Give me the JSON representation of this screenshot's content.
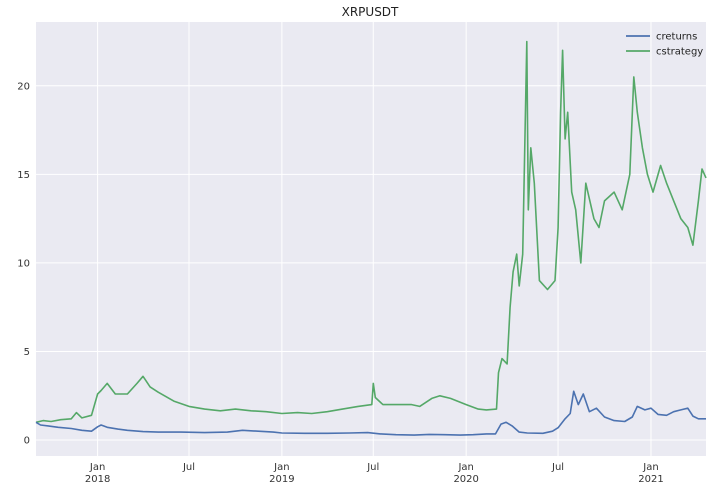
{
  "chart_data": {
    "type": "line",
    "title": "XRPUSDT",
    "xlabel": "",
    "ylabel": "",
    "x_range": [
      "2017-09-01",
      "2021-04-20"
    ],
    "ylim": [
      -0.9,
      23.6
    ],
    "grid": true,
    "legend_position": "top-right",
    "background": "#eaeaf2",
    "y_ticks": [
      0,
      5,
      10,
      15,
      20
    ],
    "x_ticks": [
      {
        "date": "2018-01-01",
        "label": "Jan",
        "year": "2018"
      },
      {
        "date": "2018-07-01",
        "label": "Jul",
        "year": ""
      },
      {
        "date": "2019-01-01",
        "label": "Jan",
        "year": "2019"
      },
      {
        "date": "2019-07-01",
        "label": "Jul",
        "year": ""
      },
      {
        "date": "2020-01-01",
        "label": "Jan",
        "year": "2020"
      },
      {
        "date": "2020-07-01",
        "label": "Jul",
        "year": ""
      },
      {
        "date": "2021-01-01",
        "label": "Jan",
        "year": "2021"
      }
    ],
    "series": [
      {
        "name": "creturns",
        "color": "#4c72b0",
        "points": [
          [
            "2017-09-01",
            1.0
          ],
          [
            "2017-09-10",
            0.85
          ],
          [
            "2017-09-25",
            0.8
          ],
          [
            "2017-10-15",
            0.72
          ],
          [
            "2017-11-10",
            0.65
          ],
          [
            "2017-12-01",
            0.55
          ],
          [
            "2017-12-20",
            0.5
          ],
          [
            "2018-01-01",
            0.75
          ],
          [
            "2018-01-08",
            0.85
          ],
          [
            "2018-01-20",
            0.72
          ],
          [
            "2018-02-10",
            0.62
          ],
          [
            "2018-03-01",
            0.55
          ],
          [
            "2018-04-01",
            0.48
          ],
          [
            "2018-05-01",
            0.45
          ],
          [
            "2018-06-15",
            0.45
          ],
          [
            "2018-08-01",
            0.42
          ],
          [
            "2018-09-15",
            0.45
          ],
          [
            "2018-10-15",
            0.55
          ],
          [
            "2018-11-15",
            0.5
          ],
          [
            "2018-12-15",
            0.45
          ],
          [
            "2019-01-01",
            0.4
          ],
          [
            "2019-02-15",
            0.38
          ],
          [
            "2019-04-01",
            0.38
          ],
          [
            "2019-05-15",
            0.4
          ],
          [
            "2019-06-20",
            0.42
          ],
          [
            "2019-07-15",
            0.35
          ],
          [
            "2019-08-15",
            0.3
          ],
          [
            "2019-09-20",
            0.28
          ],
          [
            "2019-10-20",
            0.32
          ],
          [
            "2019-11-20",
            0.3
          ],
          [
            "2019-12-20",
            0.28
          ],
          [
            "2020-01-15",
            0.3
          ],
          [
            "2020-02-10",
            0.35
          ],
          [
            "2020-02-28",
            0.35
          ],
          [
            "2020-03-10",
            0.9
          ],
          [
            "2020-03-20",
            1.0
          ],
          [
            "2020-04-01",
            0.8
          ],
          [
            "2020-04-15",
            0.45
          ],
          [
            "2020-05-01",
            0.4
          ],
          [
            "2020-06-01",
            0.38
          ],
          [
            "2020-06-20",
            0.5
          ],
          [
            "2020-07-01",
            0.7
          ],
          [
            "2020-07-15",
            1.2
          ],
          [
            "2020-07-25",
            1.5
          ],
          [
            "2020-08-01",
            2.75
          ],
          [
            "2020-08-10",
            2.0
          ],
          [
            "2020-08-20",
            2.6
          ],
          [
            "2020-09-01",
            1.6
          ],
          [
            "2020-09-15",
            1.8
          ],
          [
            "2020-10-01",
            1.3
          ],
          [
            "2020-10-20",
            1.1
          ],
          [
            "2020-11-10",
            1.05
          ],
          [
            "2020-11-25",
            1.3
          ],
          [
            "2020-12-05",
            1.9
          ],
          [
            "2020-12-20",
            1.7
          ],
          [
            "2021-01-01",
            1.8
          ],
          [
            "2021-01-15",
            1.45
          ],
          [
            "2021-02-01",
            1.4
          ],
          [
            "2021-02-15",
            1.6
          ],
          [
            "2021-03-01",
            1.7
          ],
          [
            "2021-03-15",
            1.8
          ],
          [
            "2021-03-25",
            1.35
          ],
          [
            "2021-04-05",
            1.2
          ],
          [
            "2021-04-20",
            1.2
          ]
        ]
      },
      {
        "name": "cstrategy",
        "color": "#55a868",
        "points": [
          [
            "2017-09-01",
            1.0
          ],
          [
            "2017-09-15",
            1.1
          ],
          [
            "2017-10-01",
            1.05
          ],
          [
            "2017-10-20",
            1.15
          ],
          [
            "2017-11-10",
            1.2
          ],
          [
            "2017-11-20",
            1.55
          ],
          [
            "2017-12-01",
            1.25
          ],
          [
            "2017-12-20",
            1.4
          ],
          [
            "2018-01-01",
            2.6
          ],
          [
            "2018-01-08",
            2.8
          ],
          [
            "2018-01-20",
            3.2
          ],
          [
            "2018-02-05",
            2.6
          ],
          [
            "2018-03-01",
            2.6
          ],
          [
            "2018-03-20",
            3.2
          ],
          [
            "2018-04-01",
            3.6
          ],
          [
            "2018-04-15",
            3.0
          ],
          [
            "2018-05-01",
            2.7
          ],
          [
            "2018-06-01",
            2.2
          ],
          [
            "2018-07-01",
            1.9
          ],
          [
            "2018-08-01",
            1.75
          ],
          [
            "2018-09-01",
            1.65
          ],
          [
            "2018-10-01",
            1.75
          ],
          [
            "2018-11-01",
            1.65
          ],
          [
            "2018-12-01",
            1.6
          ],
          [
            "2019-01-01",
            1.5
          ],
          [
            "2019-02-01",
            1.55
          ],
          [
            "2019-03-01",
            1.5
          ],
          [
            "2019-04-01",
            1.6
          ],
          [
            "2019-05-01",
            1.75
          ],
          [
            "2019-06-01",
            1.9
          ],
          [
            "2019-06-28",
            2.0
          ],
          [
            "2019-07-01",
            3.2
          ],
          [
            "2019-07-05",
            2.4
          ],
          [
            "2019-07-20",
            2.0
          ],
          [
            "2019-08-15",
            2.0
          ],
          [
            "2019-09-15",
            2.0
          ],
          [
            "2019-10-01",
            1.9
          ],
          [
            "2019-10-25",
            2.35
          ],
          [
            "2019-11-10",
            2.5
          ],
          [
            "2019-12-01",
            2.35
          ],
          [
            "2020-01-01",
            2.0
          ],
          [
            "2020-01-25",
            1.75
          ],
          [
            "2020-02-10",
            1.7
          ],
          [
            "2020-03-01",
            1.75
          ],
          [
            "2020-03-05",
            3.8
          ],
          [
            "2020-03-12",
            4.6
          ],
          [
            "2020-03-22",
            4.3
          ],
          [
            "2020-03-28",
            7.5
          ],
          [
            "2020-04-03",
            9.5
          ],
          [
            "2020-04-10",
            10.5
          ],
          [
            "2020-04-15",
            8.7
          ],
          [
            "2020-04-22",
            10.5
          ],
          [
            "2020-04-30",
            22.5
          ],
          [
            "2020-05-03",
            13.0
          ],
          [
            "2020-05-08",
            16.5
          ],
          [
            "2020-05-15",
            14.5
          ],
          [
            "2020-05-25",
            9.0
          ],
          [
            "2020-06-10",
            8.5
          ],
          [
            "2020-06-25",
            9.0
          ],
          [
            "2020-07-01",
            12.0
          ],
          [
            "2020-07-06",
            18.5
          ],
          [
            "2020-07-10",
            22.0
          ],
          [
            "2020-07-15",
            17.0
          ],
          [
            "2020-07-20",
            18.5
          ],
          [
            "2020-07-28",
            14.0
          ],
          [
            "2020-08-05",
            13.0
          ],
          [
            "2020-08-15",
            10.0
          ],
          [
            "2020-08-25",
            14.5
          ],
          [
            "2020-09-10",
            12.5
          ],
          [
            "2020-09-20",
            12.0
          ],
          [
            "2020-10-01",
            13.5
          ],
          [
            "2020-10-20",
            14.0
          ],
          [
            "2020-11-05",
            13.0
          ],
          [
            "2020-11-20",
            15.0
          ],
          [
            "2020-11-28",
            20.5
          ],
          [
            "2020-12-05",
            18.5
          ],
          [
            "2020-12-15",
            16.5
          ],
          [
            "2020-12-25",
            15.0
          ],
          [
            "2021-01-05",
            14.0
          ],
          [
            "2021-01-20",
            15.5
          ],
          [
            "2021-02-01",
            14.5
          ],
          [
            "2021-02-15",
            13.5
          ],
          [
            "2021-03-01",
            12.5
          ],
          [
            "2021-03-15",
            12.0
          ],
          [
            "2021-03-25",
            11.0
          ],
          [
            "2021-04-05",
            13.5
          ],
          [
            "2021-04-12",
            15.3
          ],
          [
            "2021-04-20",
            14.8
          ]
        ]
      }
    ]
  }
}
